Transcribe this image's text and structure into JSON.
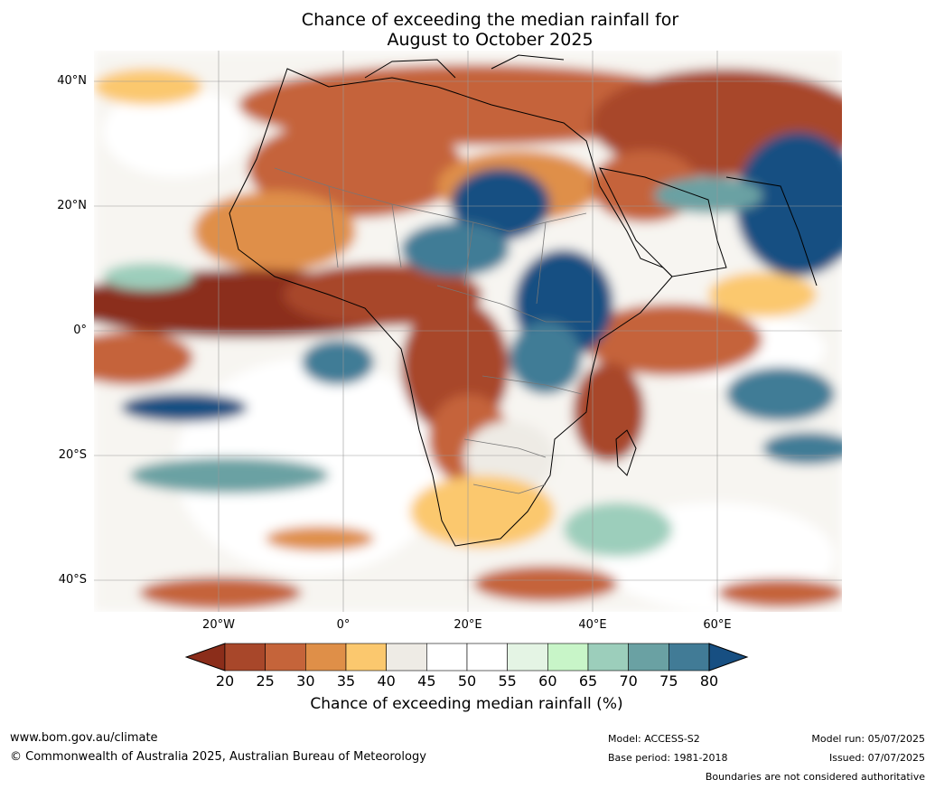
{
  "title": {
    "line1": "Chance of exceeding the median rainfall for",
    "line2": "August to October 2025"
  },
  "map": {
    "description": "forecast probability map, Africa and surrounding oceans",
    "lat_labels": [
      "40°N",
      "20°N",
      "0°",
      "20°S",
      "40°S"
    ],
    "lon_labels": [
      "20°W",
      "0°",
      "20°E",
      "40°E",
      "60°E"
    ]
  },
  "colorbar": {
    "ticks": [
      "20",
      "25",
      "30",
      "35",
      "40",
      "45",
      "50",
      "55",
      "60",
      "65",
      "70",
      "75",
      "80"
    ],
    "colors": [
      "#8b2d1a",
      "#a8472a",
      "#c5643a",
      "#df8f48",
      "#fbc86e",
      "#eeebe5",
      "#ffffff",
      "#ffffff",
      "#e4f4e4",
      "#c8f5c8",
      "#9ccebb",
      "#6aa1a3",
      "#417b96",
      "#174f82",
      "#0f4a7a"
    ],
    "low_extend_color": "#8b2d1a",
    "high_extend_color": "#174f82",
    "label": "Chance of exceeding median rainfall (%)"
  },
  "footer": {
    "url": "www.bom.gov.au/climate",
    "copyright": "© Commonwealth of Australia 2025, Australian Bureau of Meteorology",
    "model": "Model: ACCESS-S2",
    "base_period": "Base period: 1981-2018",
    "model_run": "Model run: 05/07/2025",
    "issued": "Issued: 07/07/2025",
    "disclaimer": "Boundaries are not considered authoritative"
  }
}
